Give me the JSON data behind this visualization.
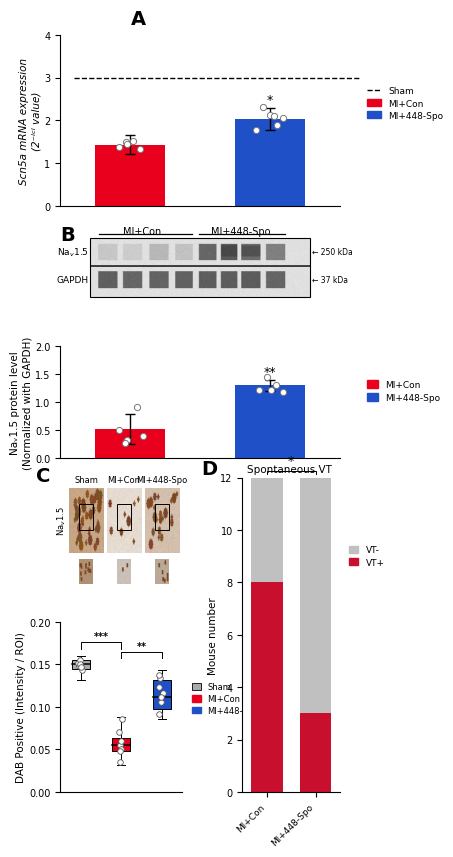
{
  "panel_A": {
    "bar_values": [
      1.43,
      2.03
    ],
    "bar_errors": [
      0.22,
      0.25
    ],
    "bar_colors": [
      "#e8001c",
      "#2050c8"
    ],
    "categories": [
      "MI+Con",
      "MI+448-Spo"
    ],
    "dashed_line_y": 3.0,
    "ylim": [
      0,
      4.0
    ],
    "yticks": [
      0.0,
      1.0,
      2.0,
      3.0,
      4.0
    ],
    "ylabel": "Scn5a mRNA expression\n(2⁻ᴵᶜᴵ value)",
    "sig_marker": "*",
    "dots_A_red": [
      1.38,
      1.48,
      1.52,
      1.32,
      1.44
    ],
    "dots_A_blue": [
      1.78,
      2.32,
      2.12,
      1.88,
      2.05,
      2.1
    ]
  },
  "panel_B": {
    "bar_values": [
      0.52,
      1.3
    ],
    "bar_errors": [
      0.27,
      0.1
    ],
    "bar_colors": [
      "#e8001c",
      "#2050c8"
    ],
    "categories": [
      "MI+Con",
      "MI+448-Spo"
    ],
    "ylim": [
      0,
      2.0
    ],
    "yticks": [
      0.0,
      0.5,
      1.0,
      1.5,
      2.0
    ],
    "ylabel": "Naᵥ1.5 protein level\n(Normalized with GAPDH)",
    "sig_marker": "**",
    "dots_B_red": [
      0.5,
      0.33,
      0.92,
      0.4,
      0.28
    ],
    "dots_B_blue": [
      1.22,
      1.44,
      1.3,
      1.18,
      1.22
    ]
  },
  "panel_C": {
    "box_data": {
      "Sham": {
        "median": 0.15,
        "q1": 0.145,
        "q3": 0.155,
        "min": 0.132,
        "max": 0.16
      },
      "MI+Con": {
        "median": 0.055,
        "q1": 0.048,
        "q3": 0.063,
        "min": 0.032,
        "max": 0.088
      },
      "MI+448-Spo": {
        "median": 0.112,
        "q1": 0.098,
        "q3": 0.132,
        "min": 0.086,
        "max": 0.143
      }
    },
    "box_colors": [
      "#aaaaaa",
      "#e8001c",
      "#2050c8"
    ],
    "ylim": [
      0.0,
      0.2
    ],
    "yticks": [
      0.0,
      0.05,
      0.1,
      0.15,
      0.2
    ],
    "ylabel": "DAB Positive (Intensity / ROI)",
    "dots_sham": [
      0.148,
      0.152,
      0.155,
      0.144,
      0.151,
      0.147
    ],
    "dots_micon": [
      0.055,
      0.06,
      0.05,
      0.07,
      0.048,
      0.035,
      0.086
    ],
    "dots_mi448": [
      0.092,
      0.106,
      0.116,
      0.124,
      0.134,
      0.138,
      0.112
    ]
  },
  "panel_D": {
    "categories": [
      "MI+Con",
      "MI+448-Spo"
    ],
    "vt_plus": [
      8,
      3
    ],
    "vt_minus": [
      4,
      9
    ],
    "color_plus": "#c8102e",
    "color_minus": "#c0c0c0",
    "ylim": [
      0,
      12
    ],
    "yticks": [
      0,
      2,
      4,
      6,
      8,
      10,
      12
    ],
    "ylabel": "Mouse number",
    "title": "Spontaneous VT",
    "sig_marker": "*"
  },
  "bg_color": "#ffffff",
  "panel_label_fontsize": 14,
  "axis_fontsize": 7.5,
  "tick_fontsize": 7
}
